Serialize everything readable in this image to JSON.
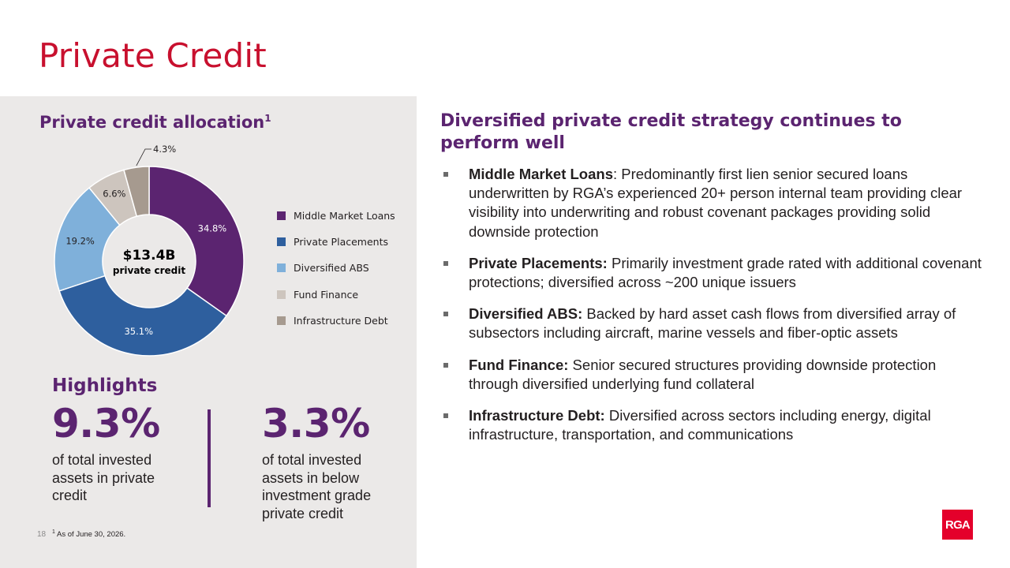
{
  "page": {
    "title": "Private Credit",
    "page_number": "18",
    "footnote_marker": "1",
    "footnote_text": "As of June 30, 2026."
  },
  "left": {
    "heading": "Private credit allocation",
    "heading_sup": "1"
  },
  "chart_data": {
    "type": "pie",
    "donut": true,
    "center_value": "$13.4B",
    "center_label": "private credit",
    "categories": [
      "Middle Market Loans",
      "Private Placements",
      "Diversified ABS",
      "Fund Finance",
      "Infrastructure Debt"
    ],
    "values": [
      34.8,
      35.1,
      19.2,
      6.6,
      4.3
    ],
    "labels": [
      "34.8%",
      "35.1%",
      "19.2%",
      "6.6%",
      "4.3%"
    ],
    "colors": [
      "#5b2470",
      "#2e5f9e",
      "#7fb0da",
      "#cdc5be",
      "#a69a8f"
    ],
    "legend_position": "right"
  },
  "highlights": {
    "title": "Highlights",
    "stat1_value": "9.3%",
    "stat1_desc": "of total invested assets in private credit",
    "stat2_value": "3.3%",
    "stat2_desc": "of total invested assets in below investment grade private credit"
  },
  "right": {
    "heading": "Diversified private credit strategy continues to perform well",
    "bullets": [
      {
        "term": "Middle Market Loans",
        "text": ": Predominantly first lien senior secured loans underwritten by RGA’s experienced 20+ person internal team providing clear visibility into underwriting and robust covenant packages providing solid downside protection"
      },
      {
        "term": "Private Placements:",
        "text": " Primarily investment grade rated with additional covenant protections; diversified across ~200 unique issuers"
      },
      {
        "term": "Diversified ABS:",
        "text": " Backed by hard asset cash flows from diversified array of subsectors including aircraft, marine vessels and fiber-optic assets"
      },
      {
        "term": "Fund Finance:",
        "text": " Senior secured structures providing downside protection through diversified underlying fund collateral"
      },
      {
        "term": "Infrastructure Debt:",
        "text": " Diversified across sectors including energy, digital infrastructure, transportation, and communications"
      }
    ]
  },
  "logo": {
    "text": "RGA",
    "color": "#e4002b"
  },
  "colors": {
    "title": "#c8102e",
    "accent": "#5b2470",
    "panel": "#ebe9e8"
  }
}
